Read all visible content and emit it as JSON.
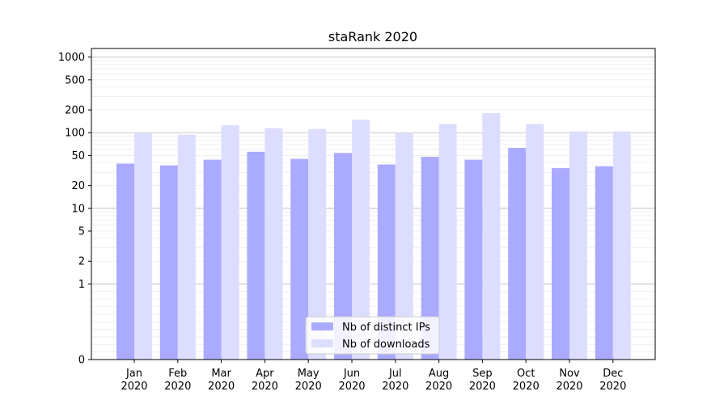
{
  "chart_data": {
    "type": "bar",
    "title": "staRank 2020",
    "xlabel": "",
    "ylabel": "",
    "categories": [
      "Jan",
      "Feb",
      "Mar",
      "Apr",
      "May",
      "Jun",
      "Jul",
      "Aug",
      "Sep",
      "Oct",
      "Nov",
      "Dec"
    ],
    "year": "2020",
    "series": [
      {
        "name": "Nb of distinct IPs",
        "color": "#aaaaff",
        "values": [
          39,
          37,
          44,
          56,
          45,
          54,
          38,
          48,
          44,
          63,
          34,
          36
        ]
      },
      {
        "name": "Nb of downloads",
        "color": "#ddddff",
        "values": [
          100,
          94,
          126,
          115,
          112,
          149,
          100,
          131,
          182,
          131,
          104,
          104
        ]
      }
    ],
    "yscale": "symlog",
    "ylim": [
      0,
      1300
    ],
    "yticks": [
      0,
      1,
      2,
      5,
      10,
      20,
      50,
      100,
      200,
      500,
      1000
    ],
    "ytick_labels": [
      "0",
      "1",
      "2",
      "5",
      "10",
      "20",
      "50",
      "100",
      "200",
      "500",
      "1000"
    ],
    "grid": "horizontal",
    "legend_position": "bottom-center"
  }
}
